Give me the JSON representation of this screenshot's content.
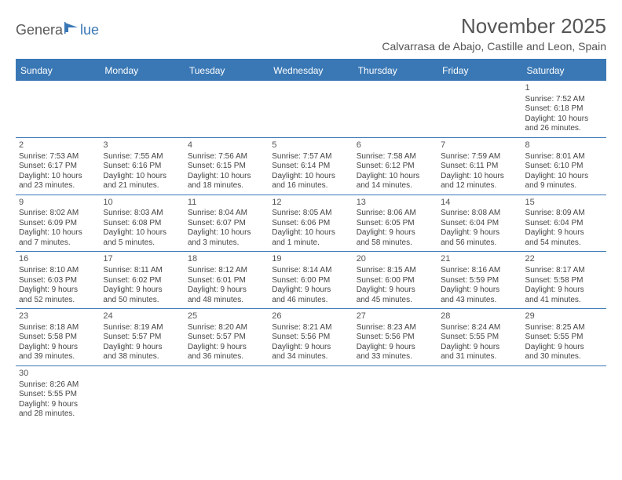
{
  "logo": {
    "text1": "Genera",
    "text2": "lue"
  },
  "title": "November 2025",
  "location": "Calvarrasa de Abajo, Castille and Leon, Spain",
  "colors": {
    "accent": "#3a78b5",
    "text": "#444444",
    "heading": "#555555"
  },
  "weekdays": [
    "Sunday",
    "Monday",
    "Tuesday",
    "Wednesday",
    "Thursday",
    "Friday",
    "Saturday"
  ],
  "weeks": [
    [
      null,
      null,
      null,
      null,
      null,
      null,
      {
        "n": "1",
        "sr": "Sunrise: 7:52 AM",
        "ss": "Sunset: 6:18 PM",
        "d1": "Daylight: 10 hours",
        "d2": "and 26 minutes."
      }
    ],
    [
      {
        "n": "2",
        "sr": "Sunrise: 7:53 AM",
        "ss": "Sunset: 6:17 PM",
        "d1": "Daylight: 10 hours",
        "d2": "and 23 minutes."
      },
      {
        "n": "3",
        "sr": "Sunrise: 7:55 AM",
        "ss": "Sunset: 6:16 PM",
        "d1": "Daylight: 10 hours",
        "d2": "and 21 minutes."
      },
      {
        "n": "4",
        "sr": "Sunrise: 7:56 AM",
        "ss": "Sunset: 6:15 PM",
        "d1": "Daylight: 10 hours",
        "d2": "and 18 minutes."
      },
      {
        "n": "5",
        "sr": "Sunrise: 7:57 AM",
        "ss": "Sunset: 6:14 PM",
        "d1": "Daylight: 10 hours",
        "d2": "and 16 minutes."
      },
      {
        "n": "6",
        "sr": "Sunrise: 7:58 AM",
        "ss": "Sunset: 6:12 PM",
        "d1": "Daylight: 10 hours",
        "d2": "and 14 minutes."
      },
      {
        "n": "7",
        "sr": "Sunrise: 7:59 AM",
        "ss": "Sunset: 6:11 PM",
        "d1": "Daylight: 10 hours",
        "d2": "and 12 minutes."
      },
      {
        "n": "8",
        "sr": "Sunrise: 8:01 AM",
        "ss": "Sunset: 6:10 PM",
        "d1": "Daylight: 10 hours",
        "d2": "and 9 minutes."
      }
    ],
    [
      {
        "n": "9",
        "sr": "Sunrise: 8:02 AM",
        "ss": "Sunset: 6:09 PM",
        "d1": "Daylight: 10 hours",
        "d2": "and 7 minutes."
      },
      {
        "n": "10",
        "sr": "Sunrise: 8:03 AM",
        "ss": "Sunset: 6:08 PM",
        "d1": "Daylight: 10 hours",
        "d2": "and 5 minutes."
      },
      {
        "n": "11",
        "sr": "Sunrise: 8:04 AM",
        "ss": "Sunset: 6:07 PM",
        "d1": "Daylight: 10 hours",
        "d2": "and 3 minutes."
      },
      {
        "n": "12",
        "sr": "Sunrise: 8:05 AM",
        "ss": "Sunset: 6:06 PM",
        "d1": "Daylight: 10 hours",
        "d2": "and 1 minute."
      },
      {
        "n": "13",
        "sr": "Sunrise: 8:06 AM",
        "ss": "Sunset: 6:05 PM",
        "d1": "Daylight: 9 hours",
        "d2": "and 58 minutes."
      },
      {
        "n": "14",
        "sr": "Sunrise: 8:08 AM",
        "ss": "Sunset: 6:04 PM",
        "d1": "Daylight: 9 hours",
        "d2": "and 56 minutes."
      },
      {
        "n": "15",
        "sr": "Sunrise: 8:09 AM",
        "ss": "Sunset: 6:04 PM",
        "d1": "Daylight: 9 hours",
        "d2": "and 54 minutes."
      }
    ],
    [
      {
        "n": "16",
        "sr": "Sunrise: 8:10 AM",
        "ss": "Sunset: 6:03 PM",
        "d1": "Daylight: 9 hours",
        "d2": "and 52 minutes."
      },
      {
        "n": "17",
        "sr": "Sunrise: 8:11 AM",
        "ss": "Sunset: 6:02 PM",
        "d1": "Daylight: 9 hours",
        "d2": "and 50 minutes."
      },
      {
        "n": "18",
        "sr": "Sunrise: 8:12 AM",
        "ss": "Sunset: 6:01 PM",
        "d1": "Daylight: 9 hours",
        "d2": "and 48 minutes."
      },
      {
        "n": "19",
        "sr": "Sunrise: 8:14 AM",
        "ss": "Sunset: 6:00 PM",
        "d1": "Daylight: 9 hours",
        "d2": "and 46 minutes."
      },
      {
        "n": "20",
        "sr": "Sunrise: 8:15 AM",
        "ss": "Sunset: 6:00 PM",
        "d1": "Daylight: 9 hours",
        "d2": "and 45 minutes."
      },
      {
        "n": "21",
        "sr": "Sunrise: 8:16 AM",
        "ss": "Sunset: 5:59 PM",
        "d1": "Daylight: 9 hours",
        "d2": "and 43 minutes."
      },
      {
        "n": "22",
        "sr": "Sunrise: 8:17 AM",
        "ss": "Sunset: 5:58 PM",
        "d1": "Daylight: 9 hours",
        "d2": "and 41 minutes."
      }
    ],
    [
      {
        "n": "23",
        "sr": "Sunrise: 8:18 AM",
        "ss": "Sunset: 5:58 PM",
        "d1": "Daylight: 9 hours",
        "d2": "and 39 minutes."
      },
      {
        "n": "24",
        "sr": "Sunrise: 8:19 AM",
        "ss": "Sunset: 5:57 PM",
        "d1": "Daylight: 9 hours",
        "d2": "and 38 minutes."
      },
      {
        "n": "25",
        "sr": "Sunrise: 8:20 AM",
        "ss": "Sunset: 5:57 PM",
        "d1": "Daylight: 9 hours",
        "d2": "and 36 minutes."
      },
      {
        "n": "26",
        "sr": "Sunrise: 8:21 AM",
        "ss": "Sunset: 5:56 PM",
        "d1": "Daylight: 9 hours",
        "d2": "and 34 minutes."
      },
      {
        "n": "27",
        "sr": "Sunrise: 8:23 AM",
        "ss": "Sunset: 5:56 PM",
        "d1": "Daylight: 9 hours",
        "d2": "and 33 minutes."
      },
      {
        "n": "28",
        "sr": "Sunrise: 8:24 AM",
        "ss": "Sunset: 5:55 PM",
        "d1": "Daylight: 9 hours",
        "d2": "and 31 minutes."
      },
      {
        "n": "29",
        "sr": "Sunrise: 8:25 AM",
        "ss": "Sunset: 5:55 PM",
        "d1": "Daylight: 9 hours",
        "d2": "and 30 minutes."
      }
    ],
    [
      {
        "n": "30",
        "sr": "Sunrise: 8:26 AM",
        "ss": "Sunset: 5:55 PM",
        "d1": "Daylight: 9 hours",
        "d2": "and 28 minutes."
      },
      null,
      null,
      null,
      null,
      null,
      null
    ]
  ]
}
